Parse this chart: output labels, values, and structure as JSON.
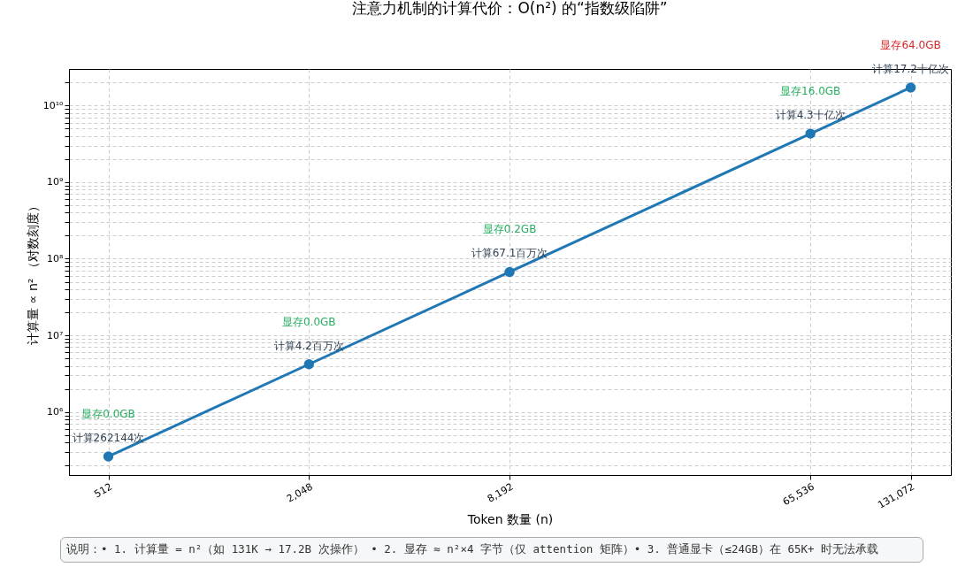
{
  "chart_data": {
    "type": "line",
    "title": "注意力机制的计算代价：O(n²) 的“指数级陷阱”",
    "xlabel": "Token 数量 (n)",
    "ylabel": "计算量 ∝ n² （对数刻度）",
    "x": [
      512,
      2048,
      8192,
      65536,
      131072
    ],
    "series": [
      {
        "color": "#1f77b4",
        "values": [
          262144,
          4194304,
          67108864,
          4294967296,
          17179869184
        ]
      }
    ],
    "log": "xy",
    "grid": true,
    "marker": "circle",
    "line_style": "solid",
    "xlim": [
      390,
      173000
    ],
    "ylim": [
      150000,
      30000000000
    ],
    "xticks": [
      512,
      {
        "value": 2048,
        "label": "2,048"
      },
      {
        "value": 8192,
        "label": "8,192"
      },
      {
        "value": 65536,
        "label": "65,536"
      },
      {
        "value": 131072,
        "label": "131,072"
      }
    ],
    "yticks": [
      {
        "value": 200000,
        "label": null
      },
      {
        "value": 300000,
        "label": null
      },
      {
        "value": 400000,
        "label": null
      },
      {
        "value": 500000,
        "label": null
      },
      {
        "value": 600000,
        "label": null
      },
      {
        "value": 700000,
        "label": null
      },
      {
        "value": 800000,
        "label": null
      },
      {
        "value": 900000,
        "label": null
      },
      {
        "value": 1000000,
        "label": "10⁶"
      },
      {
        "value": 2000000,
        "label": null
      },
      {
        "value": 3000000,
        "label": null
      },
      {
        "value": 4000000,
        "label": null
      },
      {
        "value": 5000000,
        "label": null
      },
      {
        "value": 6000000,
        "label": null
      },
      {
        "value": 7000000,
        "label": null
      },
      {
        "value": 8000000,
        "label": null
      },
      {
        "value": 9000000,
        "label": null
      },
      {
        "value": 10000000,
        "label": "10⁷"
      },
      {
        "value": 20000000,
        "label": null
      },
      {
        "value": 30000000,
        "label": null
      },
      {
        "value": 40000000,
        "label": null
      },
      {
        "value": 50000000,
        "label": null
      },
      {
        "value": 60000000,
        "label": null
      },
      {
        "value": 70000000,
        "label": null
      },
      {
        "value": 80000000,
        "label": null
      },
      {
        "value": 90000000,
        "label": null
      },
      {
        "value": 100000000,
        "label": "10⁸"
      },
      {
        "value": 200000000,
        "label": null
      },
      {
        "value": 300000000,
        "label": null
      },
      {
        "value": 400000000,
        "label": null
      },
      {
        "value": 500000000,
        "label": null
      },
      {
        "value": 600000000,
        "label": null
      },
      {
        "value": 700000000,
        "label": null
      },
      {
        "value": 800000000,
        "label": null
      },
      {
        "value": 900000000,
        "label": null
      },
      {
        "value": 1000000000,
        "label": "10⁹"
      },
      {
        "value": 2000000000,
        "label": null
      },
      {
        "value": 3000000000,
        "label": null
      },
      {
        "value": 4000000000,
        "label": null
      },
      {
        "value": 5000000000,
        "label": null
      },
      {
        "value": 6000000000,
        "label": null
      },
      {
        "value": 7000000000,
        "label": null
      },
      {
        "value": 8000000000,
        "label": null
      },
      {
        "value": 9000000000,
        "label": null
      },
      {
        "value": 10000000000,
        "label": "10¹⁰"
      },
      {
        "value": 20000000000,
        "label": null
      }
    ],
    "annotations": [
      {
        "text": "计算262144次",
        "x": 512,
        "y": 262144
      },
      "显存0.0GB",
      {
        "text": "计算4.2百万次",
        "x": 2048,
        "y": 4194304
      },
      "显存0.0GB",
      {
        "text": "计算67.1百万次",
        "x": 8192,
        "y": 67108864
      },
      "显存0.2GB",
      {
        "text": "计算4.3十亿次",
        "x": 65536,
        "y": 4294967296
      },
      "显存16.0GB",
      {
        "text": "计算17.2十亿次",
        "x": 131072,
        "y": 17179869184
      },
      "显存64.0GB",
      "说明：• 1. 计算量 = n²（如 131K → 17.2B 次操作） • 2. 显存 ≈ n²×4 字节（仅 attention 矩阵）• 3. 普通显卡（≤24GB）在 65K+ 时无法承载"
    ]
  }
}
